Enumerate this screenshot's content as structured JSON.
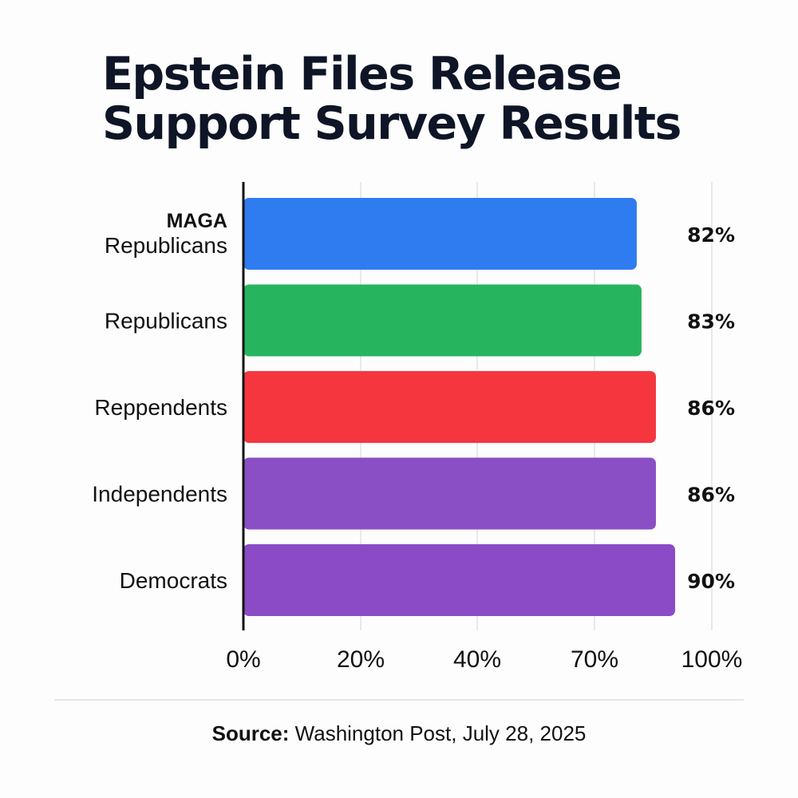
{
  "title_lines": [
    "Epstein Files Release",
    "Support Survey Results"
  ],
  "source": {
    "label": "Source:",
    "publisher": "Washington Post",
    "date": ", July 28, 2025"
  },
  "chart_data": {
    "type": "bar",
    "orientation": "horizontal",
    "title": "Epstein Files Release Support Survey Results",
    "categories": [
      {
        "bold": "MAGA",
        "label": "Republicans"
      },
      {
        "bold": "",
        "label": "Republicans"
      },
      {
        "bold": "",
        "label": "Reppendents"
      },
      {
        "bold": "",
        "label": "Independents"
      },
      {
        "bold": "",
        "label": "Democrats"
      }
    ],
    "values": [
      82,
      83,
      86,
      86,
      90
    ],
    "value_labels": [
      "82%",
      "83%",
      "86%",
      "86%",
      "90%"
    ],
    "colors": [
      "#2f7cf0",
      "#27b45f",
      "#f5363f",
      "#8a4fc4",
      "#8b4ac6"
    ],
    "x_ticks": [
      "0%",
      "20%",
      "40%",
      "70%",
      "100%"
    ],
    "xlabel": "",
    "ylabel": "",
    "grid": true
  }
}
